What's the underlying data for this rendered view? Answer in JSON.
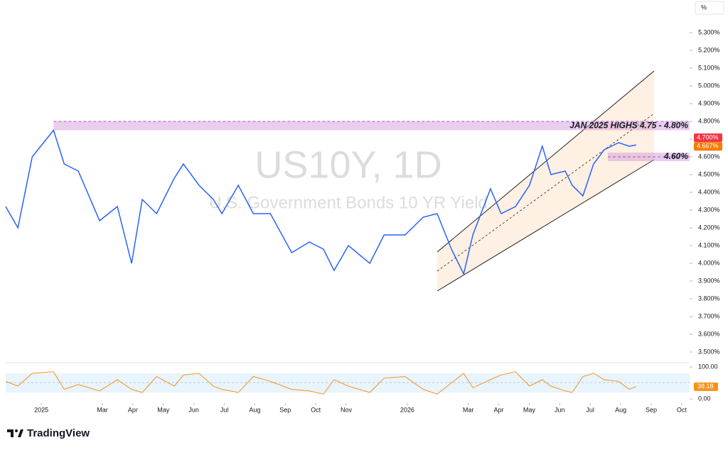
{
  "chart_data": {
    "type": "line",
    "title": "US10Y, 1D",
    "subtitle": "U.S. Government Bonds 10 YR Yield",
    "y_unit": "%",
    "brand": "TradingView",
    "x": [
      -1.17,
      -0.77,
      -0.3,
      0.4,
      0.75,
      1.21,
      1.91,
      2.49,
      2.96,
      3.31,
      3.78,
      4.36,
      4.66,
      5.17,
      5.64,
      5.92,
      6.46,
      6.95,
      7.51,
      8.21,
      8.79,
      9.25,
      9.6,
      10.07,
      10.77,
      11.24,
      11.93,
      12.52,
      12.98,
      13.45,
      13.85,
      14.15,
      14.73,
      15.08,
      15.55,
      16.01,
      16.43,
      16.71,
      17.18,
      17.41,
      17.76,
      18.11,
      18.46,
      18.93,
      19.28,
      19.51
    ],
    "values": [
      4.32,
      4.2,
      4.6,
      4.75,
      4.56,
      4.52,
      4.24,
      4.32,
      4.0,
      4.36,
      4.28,
      4.48,
      4.56,
      4.44,
      4.36,
      4.28,
      4.44,
      4.28,
      4.28,
      4.06,
      4.12,
      4.08,
      3.96,
      4.1,
      4.0,
      4.16,
      4.16,
      4.26,
      4.28,
      4.08,
      3.94,
      4.16,
      4.42,
      4.28,
      4.32,
      4.44,
      4.66,
      4.5,
      4.52,
      4.44,
      4.38,
      4.56,
      4.64,
      4.68,
      4.66,
      4.667
    ],
    "color": "#2962ff",
    "xlim": [
      -1.17,
      21.26
    ],
    "xticks": [
      {
        "value": 0,
        "label": "2025"
      },
      {
        "value": 2,
        "label": "Mar"
      },
      {
        "value": 3,
        "label": "Apr"
      },
      {
        "value": 4,
        "label": "May"
      },
      {
        "value": 5,
        "label": "Jun"
      },
      {
        "value": 6,
        "label": "Jul"
      },
      {
        "value": 7,
        "label": "Aug"
      },
      {
        "value": 8,
        "label": "Sep"
      },
      {
        "value": 9,
        "label": "Oct"
      },
      {
        "value": 10,
        "label": "Nov"
      },
      {
        "value": 12,
        "label": "2026"
      },
      {
        "value": 14,
        "label": "Mar"
      },
      {
        "value": 15,
        "label": "Apr"
      },
      {
        "value": 16,
        "label": "May"
      },
      {
        "value": 17,
        "label": "Jun"
      },
      {
        "value": 18,
        "label": "Jul"
      },
      {
        "value": 19,
        "label": "Aug"
      },
      {
        "value": 20,
        "label": "Sep"
      },
      {
        "value": 21,
        "label": "Oct"
      }
    ],
    "ylim": [
      3.444,
      5.484
    ],
    "yticks": [
      {
        "value": 3.5,
        "label": "3.500%"
      },
      {
        "value": 3.6,
        "label": "3.600%"
      },
      {
        "value": 3.7,
        "label": "3.700%"
      },
      {
        "value": 3.8,
        "label": "3.800%"
      },
      {
        "value": 3.9,
        "label": "3.900%"
      },
      {
        "value": 4.0,
        "label": "4.000%"
      },
      {
        "value": 4.1,
        "label": "4.100%"
      },
      {
        "value": 4.2,
        "label": "4.200%"
      },
      {
        "value": 4.3,
        "label": "4.300%"
      },
      {
        "value": 4.4,
        "label": "4.400%"
      },
      {
        "value": 4.5,
        "label": "4.500%"
      },
      {
        "value": 4.6,
        "label": "4.600%"
      },
      {
        "value": 4.7,
        "label": "4.700%"
      },
      {
        "value": 4.8,
        "label": "4.800%"
      },
      {
        "value": 4.9,
        "label": "4.900%"
      },
      {
        "value": 5.0,
        "label": "5.000%"
      },
      {
        "value": 5.1,
        "label": "5.100%"
      },
      {
        "value": 5.2,
        "label": "5.200%"
      },
      {
        "value": 5.3,
        "label": "5.300%"
      }
    ],
    "price_labels": [
      {
        "value": 4.7,
        "label": "4.700%",
        "color": "#f23645"
      },
      {
        "value": 4.667,
        "label": "4.667%",
        "color": "#f57c00"
      }
    ],
    "zones": [
      {
        "label": "JAN 2025 HIGHS 4.75 - 4.80%",
        "low": 4.75,
        "high": 4.8
      },
      {
        "label": "4.60%",
        "low": 4.6,
        "high": 4.6
      }
    ],
    "rsi": {
      "values": [
        55,
        40,
        80,
        85,
        30,
        45,
        25,
        60,
        30,
        20,
        70,
        40,
        75,
        80,
        40,
        30,
        20,
        70,
        55,
        30,
        25,
        15,
        60,
        40,
        20,
        65,
        70,
        30,
        15,
        50,
        80,
        35,
        60,
        75,
        85,
        40,
        60,
        40,
        25,
        20,
        70,
        80,
        60,
        55,
        30,
        38.18
      ],
      "color": "#f7931a",
      "ylim": [
        0,
        100
      ],
      "yticks": [
        {
          "value": 100,
          "label": "100.00"
        },
        {
          "value": 0,
          "label": "0.00"
        }
      ]
    }
  }
}
